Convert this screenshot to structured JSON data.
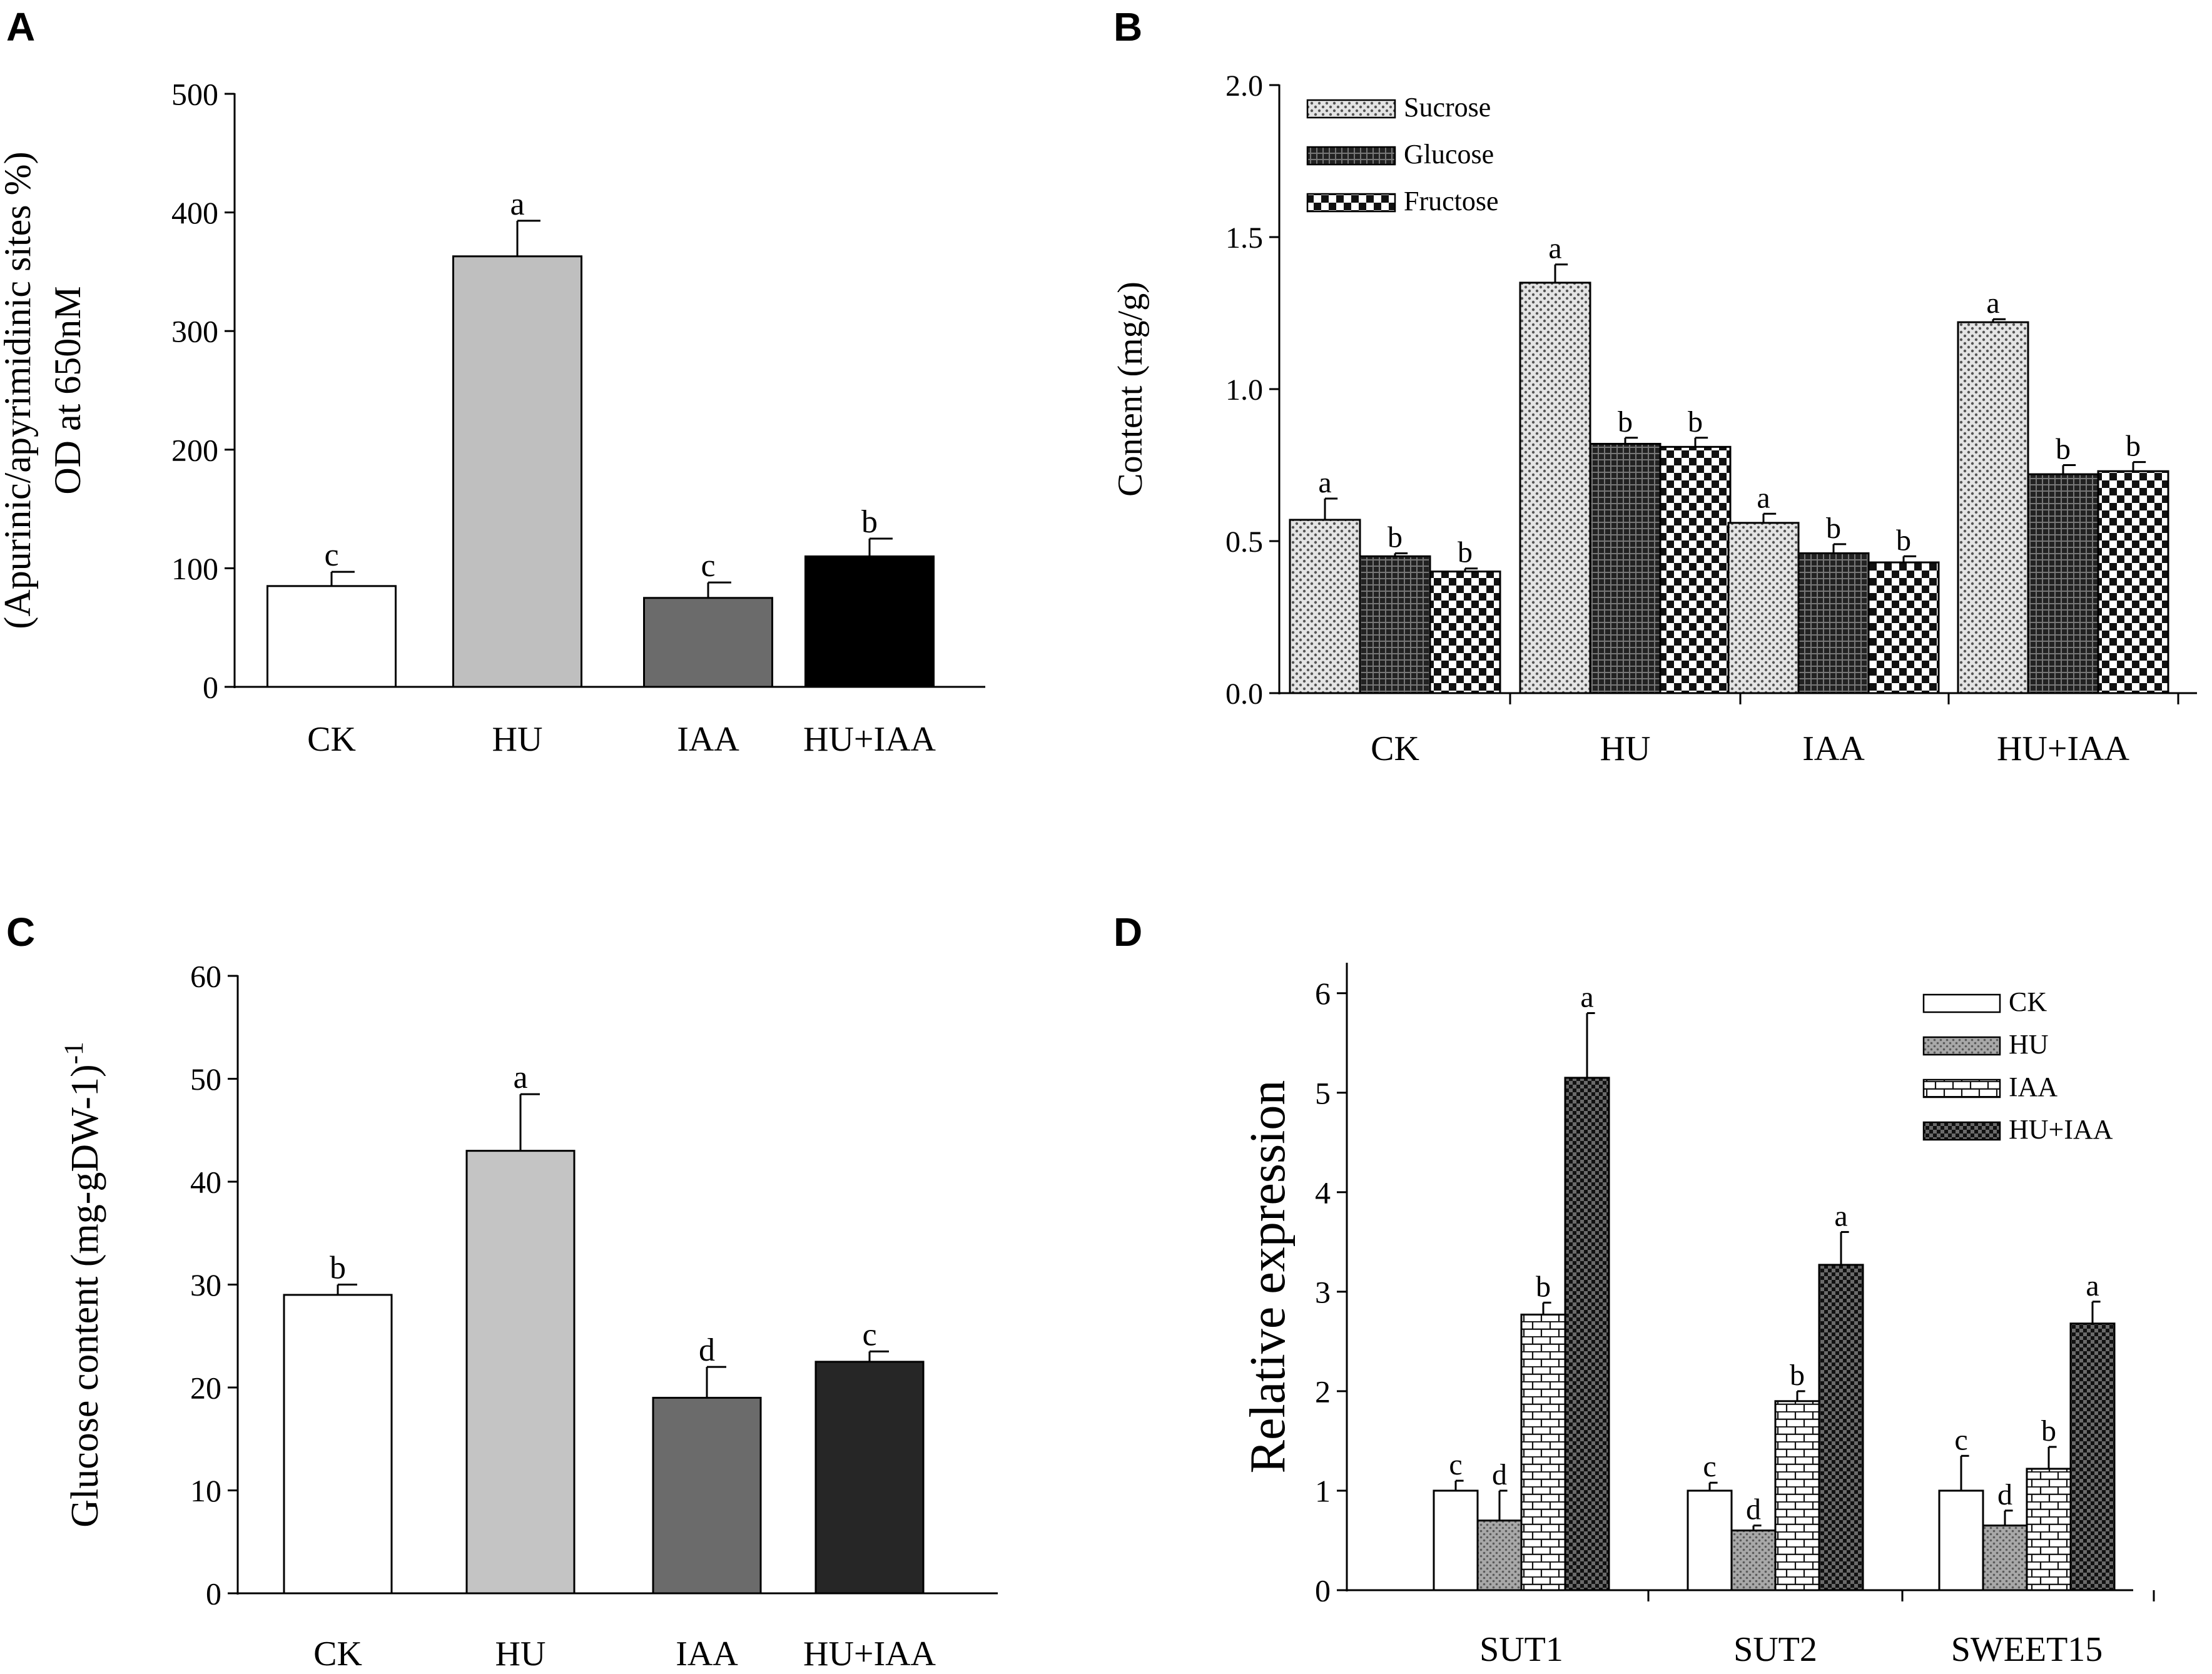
{
  "figure": {
    "panels": [
      "A",
      "B",
      "C",
      "D"
    ]
  },
  "chart_data": [
    {
      "panel": "A",
      "type": "bar",
      "title": "",
      "xlabel": "",
      "ylabel": "(Apurinic/apyrimidinic sites %)",
      "ylabel2": "OD at 650nM",
      "categories": [
        "CK",
        "HU",
        "IAA",
        "HU+IAA"
      ],
      "values": [
        85,
        363,
        75,
        110
      ],
      "errors": [
        12,
        30,
        13,
        15
      ],
      "letters": [
        "c",
        "a",
        "c",
        "b"
      ],
      "colors": [
        "#ffffff",
        "#bfbfbf",
        "#6b6b6b",
        "#000000"
      ],
      "ylim": [
        0,
        500
      ],
      "yticks": [
        "0",
        "100",
        "200",
        "300",
        "400",
        "500"
      ]
    },
    {
      "panel": "B",
      "type": "bar",
      "title": "",
      "xlabel": "",
      "ylabel": "Content (mg/g)",
      "categories": [
        "CK",
        "HU",
        "IAA",
        "HU+IAA"
      ],
      "series": [
        {
          "name": "Sucrose",
          "pattern": "dots",
          "values": [
            0.57,
            1.35,
            0.56,
            1.22
          ],
          "errors": [
            0.07,
            0.06,
            0.03,
            0.01
          ],
          "letters": [
            "a",
            "a",
            "a",
            "a"
          ]
        },
        {
          "name": "Glucose",
          "pattern": "darkgrid",
          "values": [
            0.45,
            0.82,
            0.46,
            0.72
          ],
          "errors": [
            0.01,
            0.02,
            0.03,
            0.03
          ],
          "letters": [
            "b",
            "b",
            "b",
            "b"
          ]
        },
        {
          "name": "Fructose",
          "pattern": "checker",
          "values": [
            0.4,
            0.81,
            0.43,
            0.73
          ],
          "errors": [
            0.01,
            0.03,
            0.02,
            0.03
          ],
          "letters": [
            "b",
            "b",
            "b",
            "b"
          ]
        }
      ],
      "legend_position": "top-left",
      "ylim": [
        0,
        2
      ],
      "yticks": [
        "0.0",
        "0.5",
        "1.0",
        "1.5",
        "2.0"
      ]
    },
    {
      "panel": "C",
      "type": "bar",
      "title": "",
      "xlabel": "",
      "ylabel": "Glucose content (mg-gDW-1)",
      "ylabel_sup": "-1",
      "categories": [
        "CK",
        "HU",
        "IAA",
        "HU+IAA"
      ],
      "values": [
        29,
        43,
        19,
        22.5
      ],
      "errors": [
        1,
        5.5,
        3,
        1
      ],
      "letters": [
        "b",
        "a",
        "d",
        "c"
      ],
      "colors": [
        "#ffffff",
        "#c4c4c4",
        "#6b6b6b",
        "#262626"
      ],
      "ylim": [
        0,
        60
      ],
      "yticks": [
        "0",
        "10",
        "20",
        "30",
        "40",
        "50",
        "60"
      ]
    },
    {
      "panel": "D",
      "type": "bar",
      "title": "",
      "xlabel": "",
      "ylabel": "Relative expression",
      "categories": [
        "SUT1",
        "SUT2",
        "SWEET15"
      ],
      "series": [
        {
          "name": "CK",
          "pattern": "white",
          "values": [
            1.0,
            1.0,
            1.0
          ],
          "errors": [
            0.1,
            0.08,
            0.35
          ],
          "letters": [
            "c",
            "c",
            "c"
          ]
        },
        {
          "name": "HU",
          "pattern": "greydots",
          "values": [
            0.7,
            0.6,
            0.65
          ],
          "errors": [
            0.3,
            0.05,
            0.15
          ],
          "letters": [
            "d",
            "d",
            "d"
          ]
        },
        {
          "name": "IAA",
          "pattern": "brick",
          "values": [
            2.77,
            1.9,
            1.22
          ],
          "errors": [
            0.12,
            0.1,
            0.22
          ],
          "letters": [
            "b",
            "b",
            "b"
          ]
        },
        {
          "name": "HU+IAA",
          "pattern": "darkcheck",
          "values": [
            5.15,
            3.27,
            2.68
          ],
          "errors": [
            0.65,
            0.33,
            0.22
          ],
          "letters": [
            "a",
            "a",
            "a"
          ]
        }
      ],
      "legend_position": "top-right",
      "ylim": [
        0,
        6.3
      ],
      "yticks": [
        "0",
        "1",
        "2",
        "3",
        "4",
        "5",
        "6"
      ]
    }
  ]
}
